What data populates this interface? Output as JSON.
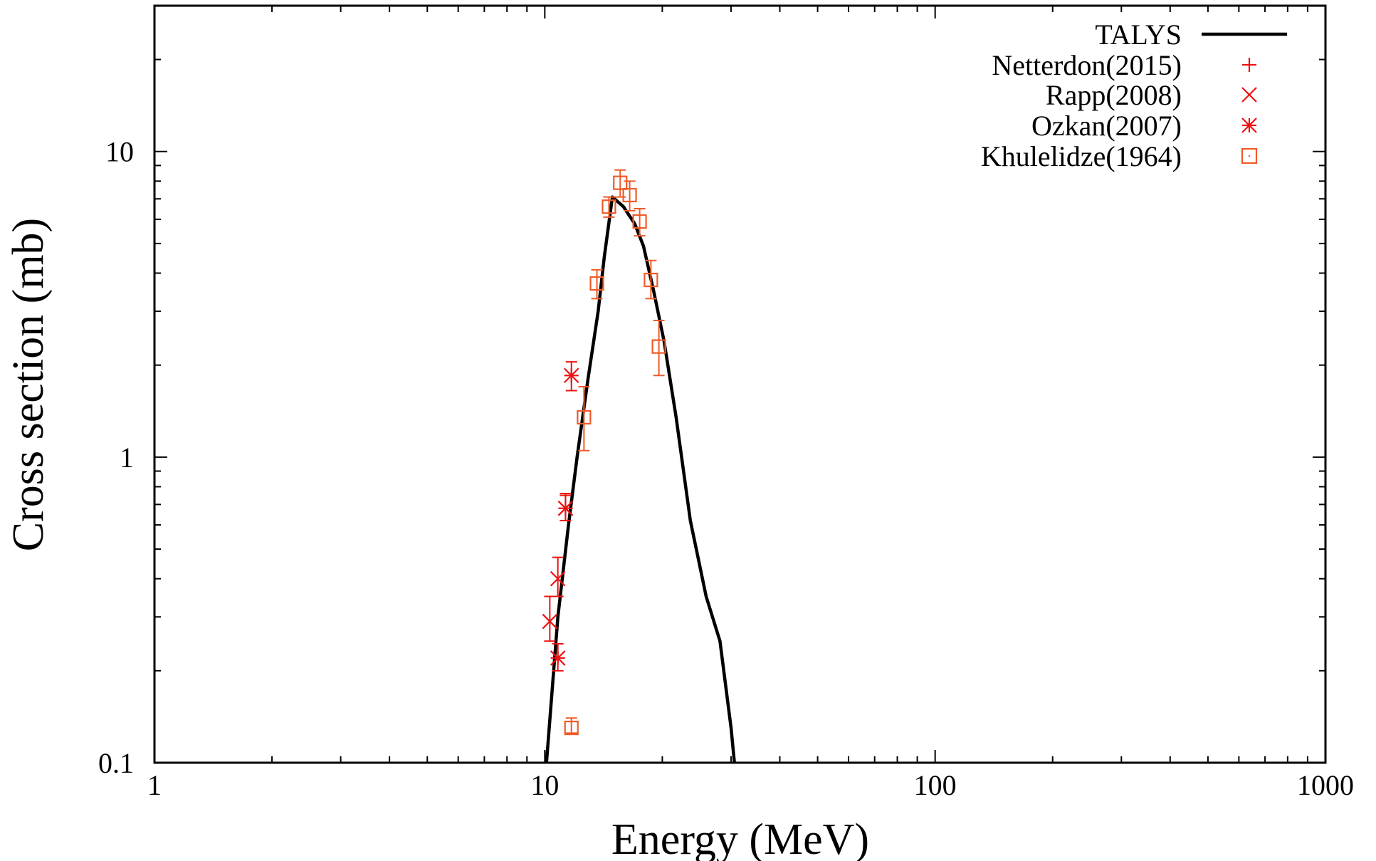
{
  "chart_data": {
    "type": "scatter",
    "title": "",
    "xlabel": "Energy (MeV)",
    "ylabel": "Cross section (mb)",
    "xscale": "log",
    "yscale": "log",
    "xlim": [
      1,
      1000
    ],
    "ylim": [
      0.1,
      30
    ],
    "x_tick_labels": [
      "1",
      "10",
      "100",
      "1000"
    ],
    "x_tick_values": [
      1,
      10,
      100,
      1000
    ],
    "y_tick_labels": [
      "0.1",
      "1",
      "10"
    ],
    "y_tick_values": [
      0.1,
      1,
      10
    ],
    "grid": false,
    "legend_position": "top-right",
    "series": [
      {
        "name": "TALYS",
        "kind": "line",
        "color": "#000000",
        "points": [
          [
            10.1,
            0.1
          ],
          [
            10.8,
            0.3
          ],
          [
            11.5,
            0.6
          ],
          [
            12.1,
            1.0
          ],
          [
            12.9,
            1.8
          ],
          [
            13.7,
            3.0
          ],
          [
            14.2,
            4.5
          ],
          [
            14.9,
            7.1
          ],
          [
            15.9,
            6.6
          ],
          [
            17.0,
            5.8
          ],
          [
            17.9,
            4.9
          ],
          [
            19.0,
            3.5
          ],
          [
            20.2,
            2.4
          ],
          [
            21.7,
            1.35
          ],
          [
            23.6,
            0.62
          ],
          [
            25.9,
            0.35
          ],
          [
            28.1,
            0.25
          ],
          [
            30.0,
            0.13
          ],
          [
            30.6,
            0.1
          ]
        ]
      },
      {
        "name": "Netterdon(2015)",
        "kind": "points",
        "marker": "plus",
        "color": "#ee1111",
        "points": [],
        "errors": []
      },
      {
        "name": "Rapp(2008)",
        "kind": "points",
        "marker": "cross",
        "color": "#ee1111",
        "points": [
          [
            10.3,
            0.29
          ],
          [
            10.8,
            0.4
          ],
          [
            11.3,
            0.68
          ]
        ],
        "errors": [
          [
            0.25,
            0.35
          ],
          [
            0.35,
            0.47
          ],
          [
            0.62,
            0.76
          ]
        ]
      },
      {
        "name": "Ozkan(2007)",
        "kind": "points",
        "marker": "asterisk",
        "color": "#ee1111",
        "points": [
          [
            10.8,
            0.22
          ],
          [
            11.3,
            0.68
          ],
          [
            11.7,
            1.85
          ]
        ],
        "errors": [
          [
            0.2,
            0.245
          ],
          [
            0.62,
            0.75
          ],
          [
            1.65,
            2.05
          ]
        ]
      },
      {
        "name": "Khulelidze(1964)",
        "kind": "points",
        "marker": "square",
        "color": "#f05a28",
        "points": [
          [
            11.7,
            0.13
          ],
          [
            12.6,
            1.35
          ],
          [
            13.6,
            3.7
          ],
          [
            14.6,
            6.6
          ],
          [
            15.6,
            7.9
          ],
          [
            16.5,
            7.2
          ],
          [
            17.5,
            5.9
          ],
          [
            18.7,
            3.8
          ],
          [
            19.6,
            2.3
          ]
        ],
        "errors": [
          [
            0.125,
            0.14
          ],
          [
            1.05,
            1.7
          ],
          [
            3.3,
            4.1
          ],
          [
            6.1,
            7.1
          ],
          [
            7.1,
            8.7
          ],
          [
            6.4,
            8.0
          ],
          [
            5.3,
            6.5
          ],
          [
            3.3,
            4.4
          ],
          [
            1.85,
            2.8
          ]
        ]
      }
    ]
  }
}
